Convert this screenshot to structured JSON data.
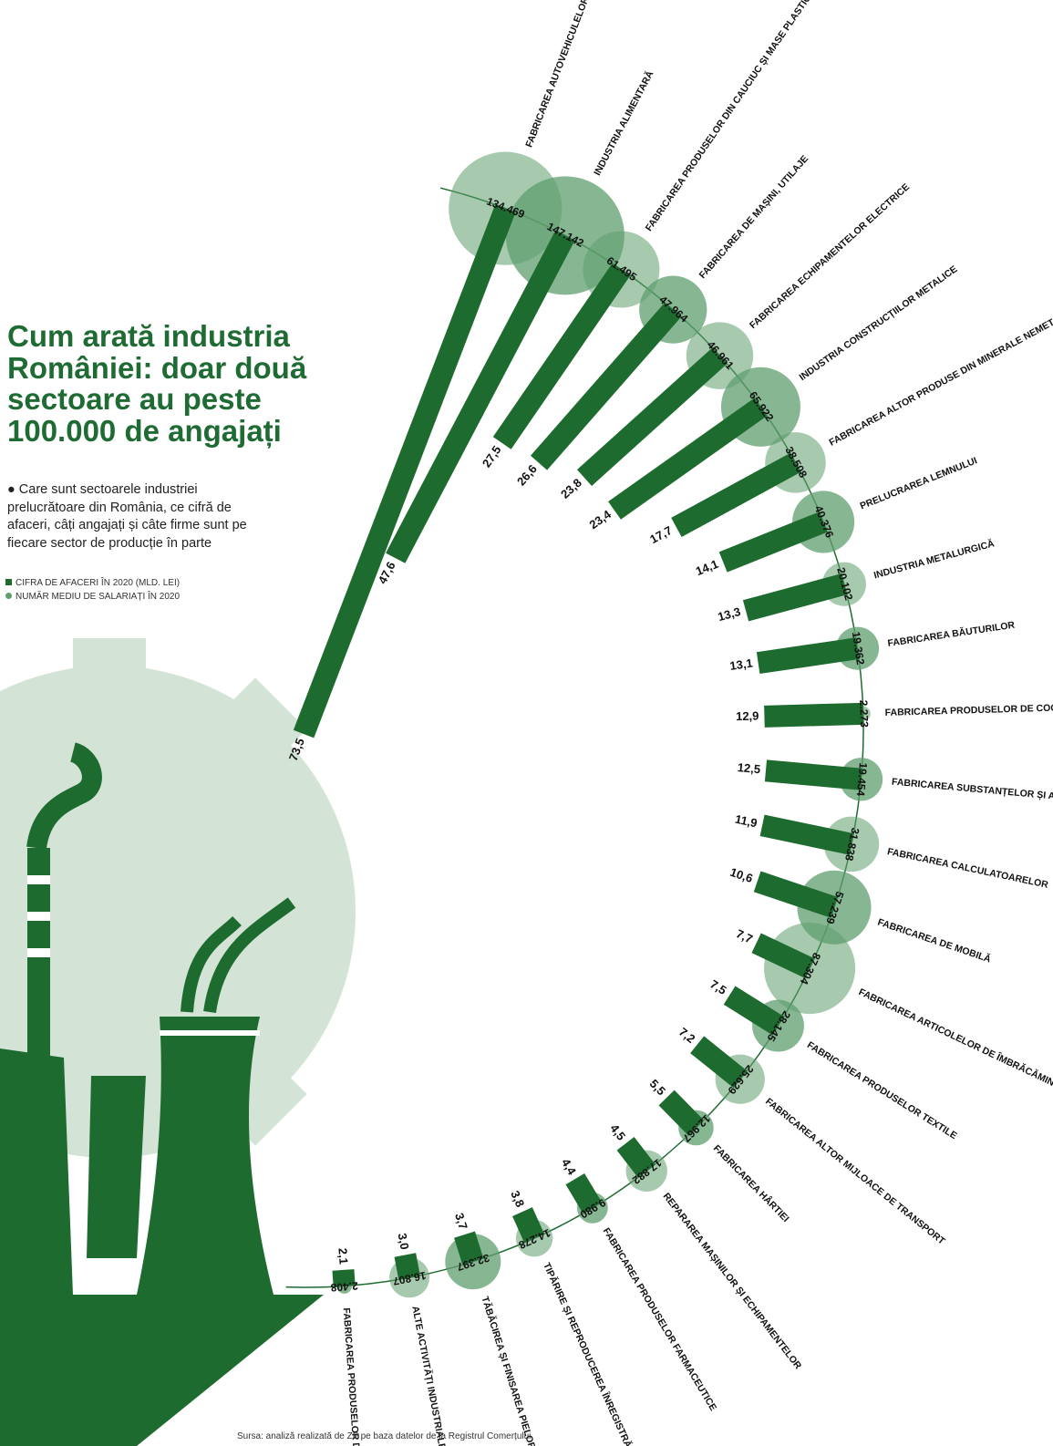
{
  "chart_data": {
    "type": "radial",
    "title": "Cum arată industria României: doar două sectoare au peste 100.000 de angajați",
    "subtitle": "Care sunt sectoarele industriei prelucrătoare din România, ce cifră de afaceri, câți angajați și câte firme sunt pe fiecare sector de producție în parte",
    "source": "Sursa: analiză realizată de ZF pe baza datelor de la Registrul Comerțului",
    "categories": [
      "FABRICAREA AUTOVEHICULELOR",
      "INDUSTRIA ALIMENTARĂ",
      "FABRICAREA PRODUSELOR DIN CAUCIUC ȘI MASE PLASTICE",
      "FABRICAREA DE MAȘINI, UTILAJE",
      "FABRICAREA ECHIPAMENTELOR ELECTRICE",
      "INDUSTRIA CONSTRUCȚIILOR METALICE",
      "FABRICAREA ALTOR PRODUSE DIN MINERALE NEMETALICE",
      "PRELUCRAREA LEMNULUI",
      "INDUSTRIA METALURGICĂ",
      "FABRICAREA BĂUTURILOR",
      "FABRICAREA PRODUSELOR DE COCSERIE",
      "FABRICAREA SUBSTANȚELOR ȘI A PRODUSELOR CHIMICE",
      "FABRICAREA CALCULATOARELOR",
      "FABRICAREA DE MOBILĂ",
      "FABRICAREA ARTICOLELOR DE ÎMBRĂCĂMINTE",
      "FABRICAREA PRODUSELOR TEXTILE",
      "FABRICAREA ALTOR MIJLOACE DE TRANSPORT",
      "FABRICAREA HÂRTIEI",
      "REPARAREA MAȘINILOR ȘI ECHIPAMENTELOR",
      "FABRICAREA PRODUSELOR FARMACEUTICE",
      "TIPĂRIRE ȘI REPRODUCEREA ÎNREGISTRĂRILOR",
      "TĂBĂCIREA ȘI FINISAREA PIELOR",
      "ALTE ACTIVITĂȚI INDUSTRIALE",
      "FABRICAREA PRODUSELOR DIN TUTUN"
    ],
    "series": [
      {
        "name": "CIFRA DE AFACERI ÎN 2020 (MLD. LEI)",
        "color": "#1e6b30",
        "values": [
          73.5,
          47.6,
          27.5,
          26.6,
          23.8,
          23.4,
          17.7,
          14.1,
          13.3,
          13.1,
          12.9,
          12.5,
          11.9,
          10.6,
          7.7,
          7.5,
          7.2,
          5.5,
          4.5,
          4.4,
          3.8,
          3.7,
          3.0,
          2.1
        ],
        "value_labels": [
          "73,5",
          "47,6",
          "27,5",
          "26,6",
          "23,8",
          "23,4",
          "17,7",
          "14,1",
          "13,3",
          "13,1",
          "12,9",
          "12,5",
          "11,9",
          "10,6",
          "7,7",
          "7,5",
          "7,2",
          "5,5",
          "4,5",
          "4,4",
          "3,8",
          "3,7",
          "3,0",
          "2,1"
        ]
      },
      {
        "name": "NUMĂR MEDIU DE SALARIAȚI ÎN 2020",
        "color": "#5f9e6e",
        "values": [
          134469,
          147142,
          61495,
          47964,
          46961,
          65922,
          38508,
          40376,
          20102,
          19362,
          2273,
          19454,
          31838,
          57239,
          87304,
          28145,
          25629,
          12967,
          17882,
          9980,
          14278,
          32397,
          16807,
          2408
        ],
        "value_labels": [
          "134.469",
          "147.142",
          "61.495",
          "47.964",
          "46.961",
          "65.922",
          "38.508",
          "40.376",
          "20.102",
          "19.362",
          "2.273",
          "19.454",
          "31.838",
          "57.239",
          "87.304",
          "28.145",
          "25.629",
          "12.967",
          "17.882",
          "9.980",
          "14.278",
          "32.397",
          "16.807",
          "2.408"
        ]
      }
    ]
  }
}
